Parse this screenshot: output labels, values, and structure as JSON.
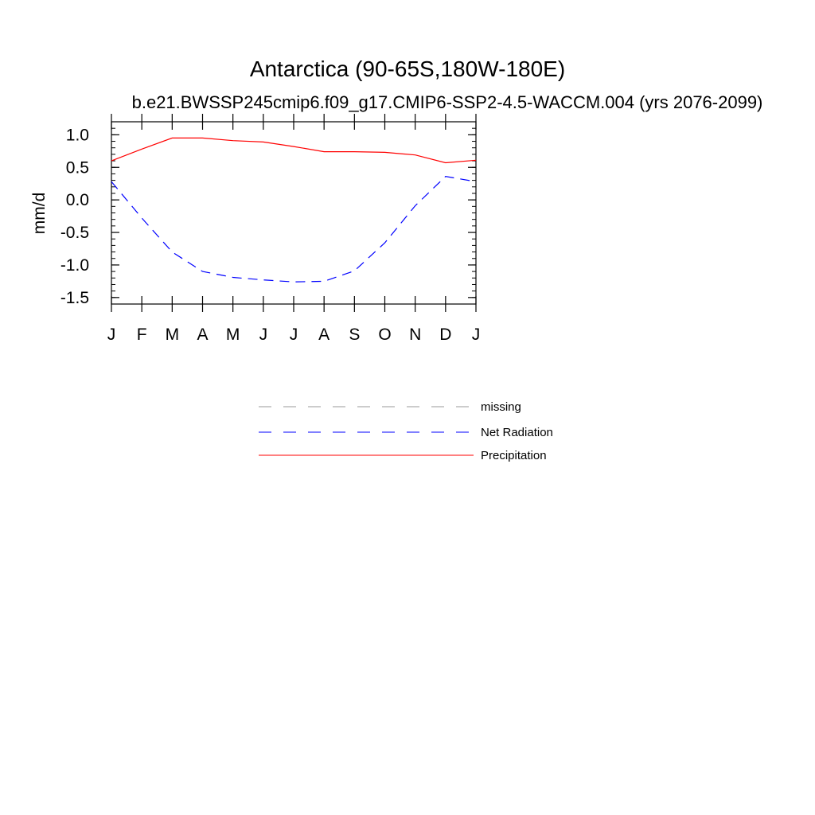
{
  "chart_data": {
    "type": "line",
    "title": "Antarctica (90-65S,180W-180E)",
    "subtitle": "b.e21.BWSSP245cmip6.f09_g17.CMIP6-SSP2-4.5-WACCM.004 (yrs 2076-2099)",
    "ylabel": "mm/d",
    "xlabel": "",
    "categories": [
      "J",
      "F",
      "M",
      "A",
      "M",
      "J",
      "J",
      "A",
      "S",
      "O",
      "N",
      "D",
      "J"
    ],
    "ylim": [
      -1.6,
      1.2
    ],
    "yticks": [
      "1.0",
      "0.5",
      "0.0",
      "-0.5",
      "-1.0",
      "-1.5"
    ],
    "ytick_values": [
      1.0,
      0.5,
      0.0,
      -0.5,
      -1.0,
      -1.5
    ],
    "grid": false,
    "legend_position": "bottom",
    "series": [
      {
        "name": "Precipitation",
        "color": "#ff0000",
        "style": "solid",
        "values": [
          0.6,
          0.78,
          0.95,
          0.95,
          0.91,
          0.89,
          0.82,
          0.74,
          0.74,
          0.73,
          0.69,
          0.57,
          0.61
        ]
      },
      {
        "name": "Net Radiation",
        "color": "#0000ff",
        "style": "dashed",
        "values": [
          0.28,
          -0.28,
          -0.8,
          -1.1,
          -1.19,
          -1.23,
          -1.26,
          -1.25,
          -1.09,
          -0.66,
          -0.09,
          0.36,
          0.28
        ]
      }
    ],
    "legend": [
      {
        "label": "missing",
        "color": "#999999",
        "style": "dashed"
      },
      {
        "label": "Net Radiation",
        "color": "#0000ff",
        "style": "dashed"
      },
      {
        "label": "Precipitation",
        "color": "#ff0000",
        "style": "solid"
      }
    ]
  }
}
